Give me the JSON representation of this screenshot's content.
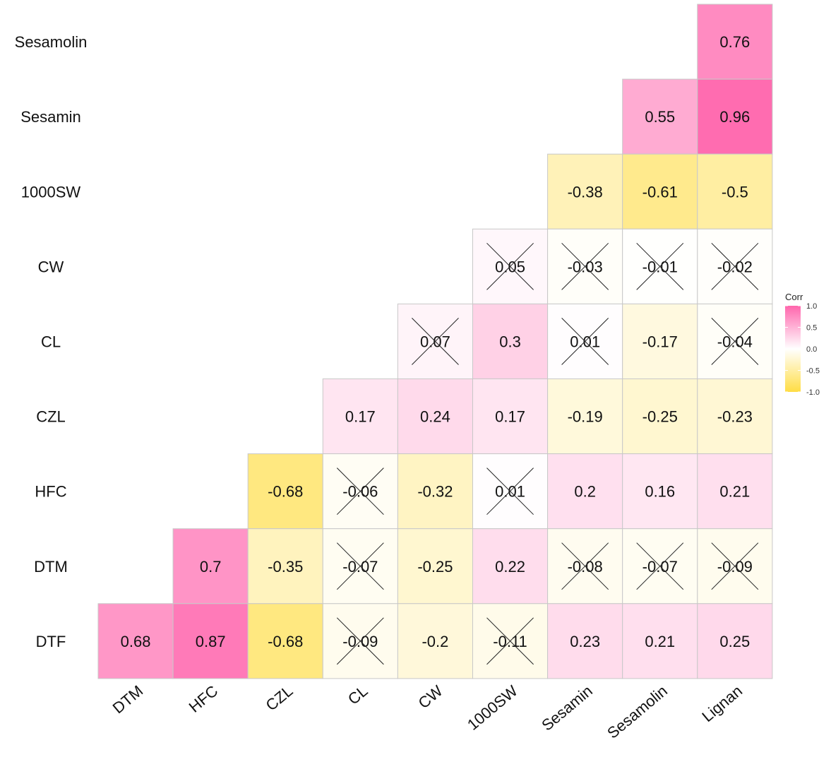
{
  "chart_data": {
    "type": "heatmap",
    "title": "",
    "x_labels": [
      "DTM",
      "HFC",
      "CZL",
      "CL",
      "CW",
      "1000SW",
      "Sesamin",
      "Sesamolin",
      "Lignan"
    ],
    "y_labels": [
      "Sesamolin",
      "Sesamin",
      "1000SW",
      "CW",
      "CL",
      "CZL",
      "HFC",
      "DTM",
      "DTF"
    ],
    "cells": [
      {
        "row": "Sesamolin",
        "col": "Lignan",
        "value": 0.76,
        "label": "0.76",
        "significant": true
      },
      {
        "row": "Sesamin",
        "col": "Sesamolin",
        "value": 0.55,
        "label": "0.55",
        "significant": true
      },
      {
        "row": "Sesamin",
        "col": "Lignan",
        "value": 0.96,
        "label": "0.96",
        "significant": true
      },
      {
        "row": "1000SW",
        "col": "Sesamin",
        "value": -0.38,
        "label": "-0.38",
        "significant": true
      },
      {
        "row": "1000SW",
        "col": "Sesamolin",
        "value": -0.61,
        "label": "-0.61",
        "significant": true
      },
      {
        "row": "1000SW",
        "col": "Lignan",
        "value": -0.5,
        "label": "-0.5",
        "significant": true
      },
      {
        "row": "CW",
        "col": "1000SW",
        "value": 0.05,
        "label": "0.05",
        "significant": false
      },
      {
        "row": "CW",
        "col": "Sesamin",
        "value": -0.03,
        "label": "-0.03",
        "significant": false
      },
      {
        "row": "CW",
        "col": "Sesamolin",
        "value": -0.01,
        "label": "-0.01",
        "significant": false
      },
      {
        "row": "CW",
        "col": "Lignan",
        "value": -0.02,
        "label": "-0.02",
        "significant": false
      },
      {
        "row": "CL",
        "col": "CW",
        "value": 0.07,
        "label": "0.07",
        "significant": false
      },
      {
        "row": "CL",
        "col": "1000SW",
        "value": 0.3,
        "label": "0.3",
        "significant": true
      },
      {
        "row": "CL",
        "col": "Sesamin",
        "value": 0.01,
        "label": "0.01",
        "significant": false
      },
      {
        "row": "CL",
        "col": "Sesamolin",
        "value": -0.17,
        "label": "-0.17",
        "significant": true
      },
      {
        "row": "CL",
        "col": "Lignan",
        "value": -0.04,
        "label": "-0.04",
        "significant": false
      },
      {
        "row": "CZL",
        "col": "CL",
        "value": 0.17,
        "label": "0.17",
        "significant": true
      },
      {
        "row": "CZL",
        "col": "CW",
        "value": 0.24,
        "label": "0.24",
        "significant": true
      },
      {
        "row": "CZL",
        "col": "1000SW",
        "value": 0.17,
        "label": "0.17",
        "significant": true
      },
      {
        "row": "CZL",
        "col": "Sesamin",
        "value": -0.19,
        "label": "-0.19",
        "significant": true
      },
      {
        "row": "CZL",
        "col": "Sesamolin",
        "value": -0.25,
        "label": "-0.25",
        "significant": true
      },
      {
        "row": "CZL",
        "col": "Lignan",
        "value": -0.23,
        "label": "-0.23",
        "significant": true
      },
      {
        "row": "HFC",
        "col": "CZL",
        "value": -0.68,
        "label": "-0.68",
        "significant": true
      },
      {
        "row": "HFC",
        "col": "CL",
        "value": -0.06,
        "label": "-0.06",
        "significant": false
      },
      {
        "row": "HFC",
        "col": "CW",
        "value": -0.32,
        "label": "-0.32",
        "significant": true
      },
      {
        "row": "HFC",
        "col": "1000SW",
        "value": 0.01,
        "label": "0.01",
        "significant": false
      },
      {
        "row": "HFC",
        "col": "Sesamin",
        "value": 0.2,
        "label": "0.2",
        "significant": true
      },
      {
        "row": "HFC",
        "col": "Sesamolin",
        "value": 0.16,
        "label": "0.16",
        "significant": true
      },
      {
        "row": "HFC",
        "col": "Lignan",
        "value": 0.21,
        "label": "0.21",
        "significant": true
      },
      {
        "row": "DTM",
        "col": "HFC",
        "value": 0.7,
        "label": "0.7",
        "significant": true
      },
      {
        "row": "DTM",
        "col": "CZL",
        "value": -0.35,
        "label": "-0.35",
        "significant": true
      },
      {
        "row": "DTM",
        "col": "CL",
        "value": -0.07,
        "label": "-0.07",
        "significant": false
      },
      {
        "row": "DTM",
        "col": "CW",
        "value": -0.25,
        "label": "-0.25",
        "significant": true
      },
      {
        "row": "DTM",
        "col": "1000SW",
        "value": 0.22,
        "label": "0.22",
        "significant": true
      },
      {
        "row": "DTM",
        "col": "Sesamin",
        "value": -0.08,
        "label": "-0.08",
        "significant": false
      },
      {
        "row": "DTM",
        "col": "Sesamolin",
        "value": -0.07,
        "label": "-0.07",
        "significant": false
      },
      {
        "row": "DTM",
        "col": "Lignan",
        "value": -0.09,
        "label": "-0.09",
        "significant": false
      },
      {
        "row": "DTF",
        "col": "DTM",
        "value": 0.68,
        "label": "0.68",
        "significant": true
      },
      {
        "row": "DTF",
        "col": "HFC",
        "value": 0.87,
        "label": "0.87",
        "significant": true
      },
      {
        "row": "DTF",
        "col": "CZL",
        "value": -0.68,
        "label": "-0.68",
        "significant": true
      },
      {
        "row": "DTF",
        "col": "CL",
        "value": -0.09,
        "label": "-0.09",
        "significant": false
      },
      {
        "row": "DTF",
        "col": "CW",
        "value": -0.2,
        "label": "-0.2",
        "significant": true
      },
      {
        "row": "DTF",
        "col": "1000SW",
        "value": -0.11,
        "label": "-0.11",
        "significant": false
      },
      {
        "row": "DTF",
        "col": "Sesamin",
        "value": 0.23,
        "label": "0.23",
        "significant": true
      },
      {
        "row": "DTF",
        "col": "Sesamolin",
        "value": 0.21,
        "label": "0.21",
        "significant": true
      },
      {
        "row": "DTF",
        "col": "Lignan",
        "value": 0.25,
        "label": "0.25",
        "significant": true
      }
    ],
    "legend": {
      "title": "Corr",
      "placement": "right",
      "range": [
        -1.0,
        1.0
      ],
      "ticks": [
        1.0,
        0.5,
        0.0,
        -0.5,
        -1.0
      ],
      "tick_labels": [
        "1.0",
        "0.5",
        "0.0",
        "-0.5",
        "-1.0"
      ]
    },
    "colors": {
      "high": "#ff66ad",
      "mid": "#ffffff",
      "low": "#ffdd44",
      "cell_border": "#c8c8c8"
    }
  }
}
